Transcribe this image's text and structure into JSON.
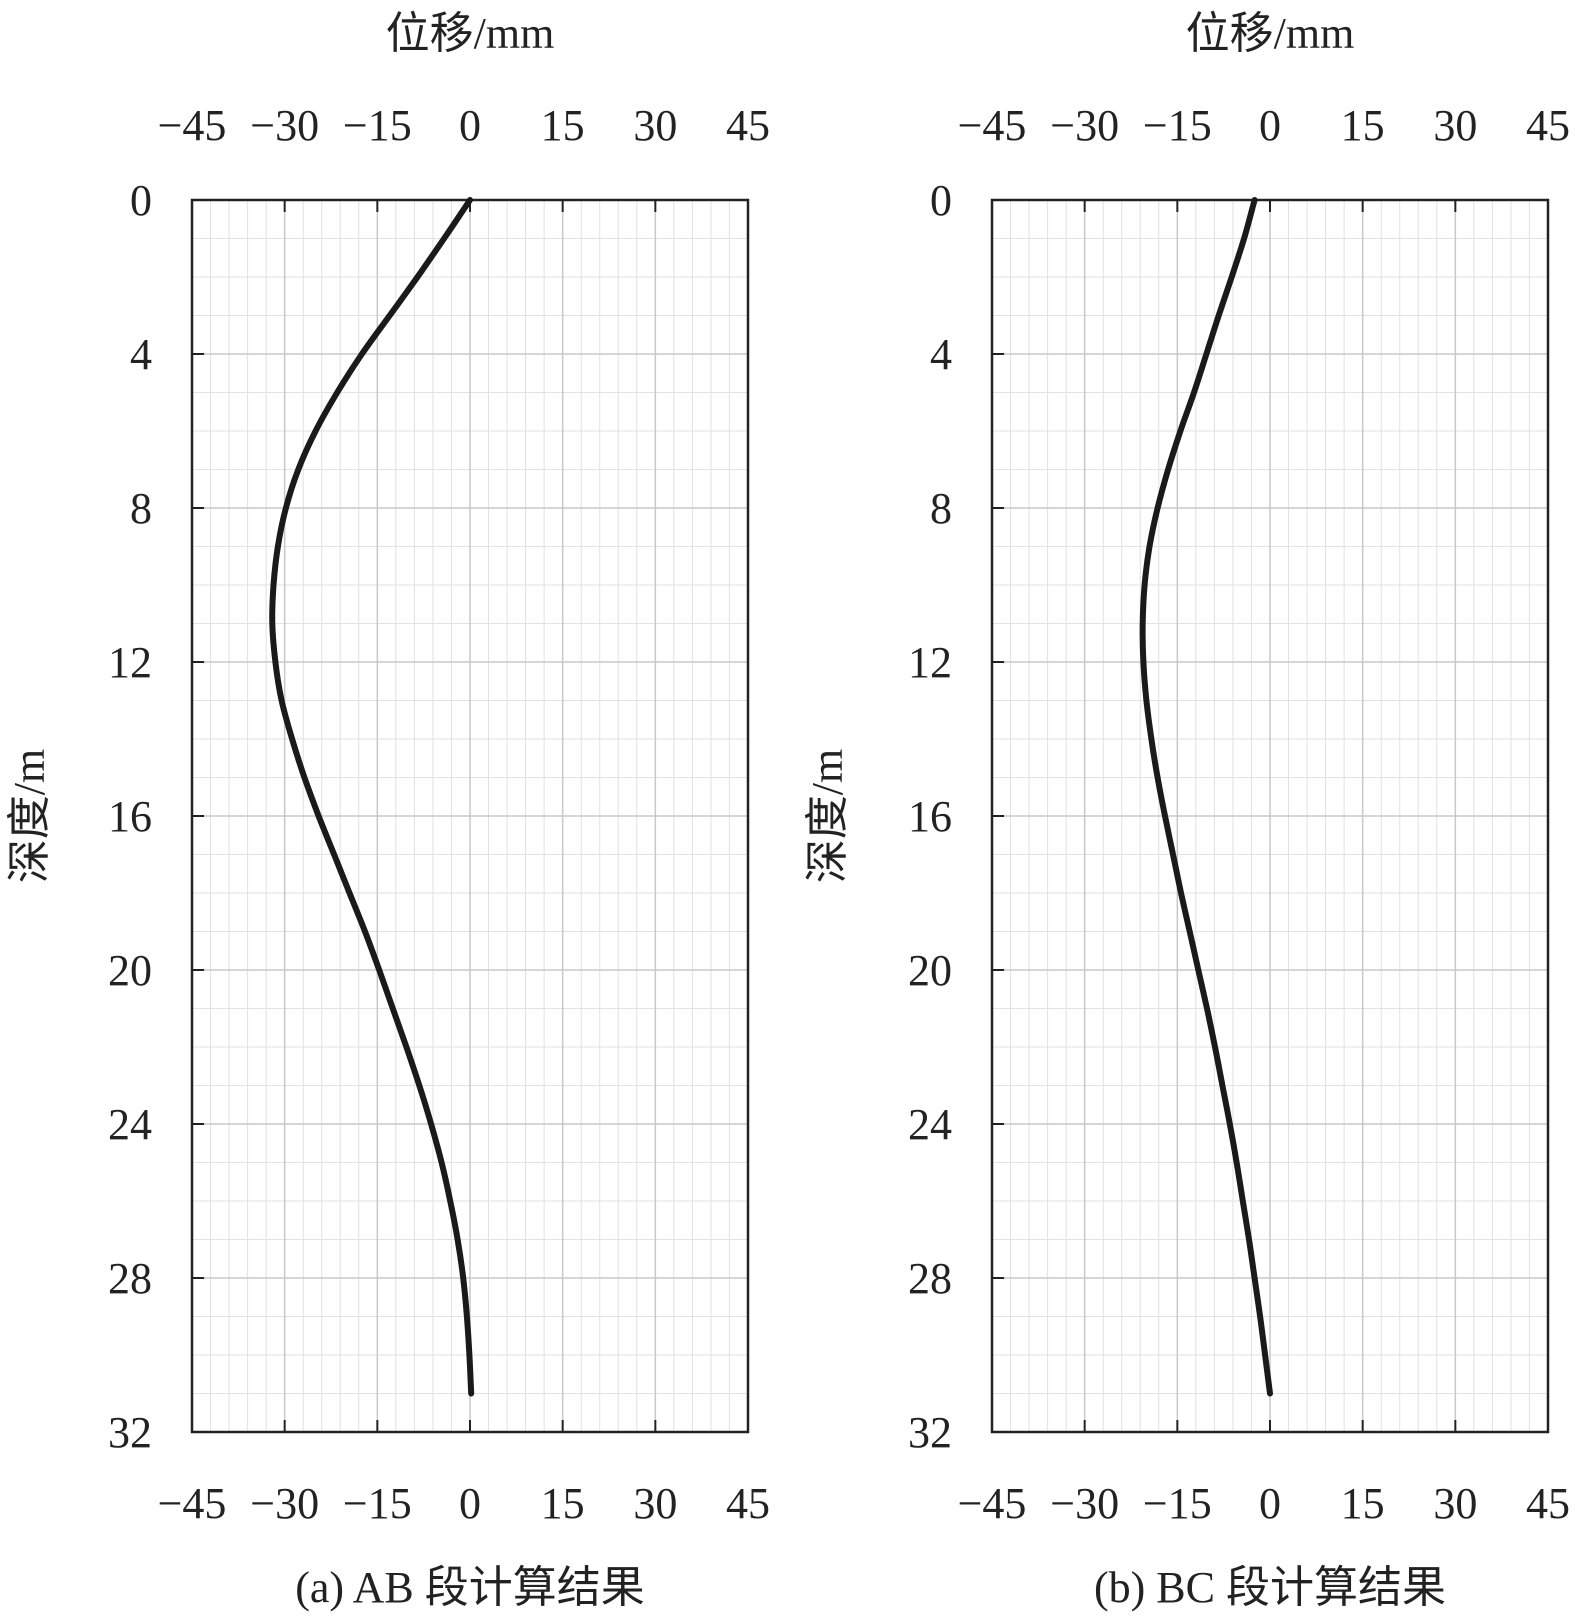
{
  "chart_data": [
    {
      "type": "line",
      "caption": "(a) AB 段计算结果",
      "xlabel": "位移/mm",
      "ylabel": "深度/m",
      "xlim": [
        -45,
        45
      ],
      "ylim": [
        0,
        32
      ],
      "y_inverted": true,
      "xticks": [
        "−45",
        "−30",
        "−15",
        "0",
        "15",
        "30",
        "45"
      ],
      "xtick_values": [
        -45,
        -30,
        -15,
        0,
        15,
        30,
        45
      ],
      "yticks": [
        "0",
        "4",
        "8",
        "12",
        "16",
        "20",
        "24",
        "28",
        "32"
      ],
      "ytick_values": [
        0,
        4,
        8,
        12,
        16,
        20,
        24,
        28,
        32
      ],
      "x_axis_top_and_bottom": true,
      "grid": true,
      "series": [
        {
          "depth": [
            0,
            1,
            2,
            3,
            4,
            5,
            6,
            7,
            8,
            9,
            10,
            11,
            12,
            13,
            14,
            15,
            16,
            17,
            18,
            19,
            20,
            21,
            22,
            23,
            24,
            25,
            26,
            27,
            28,
            29,
            30,
            31
          ],
          "displacement": [
            0,
            -4.2,
            -8.5,
            -13,
            -17.5,
            -21.5,
            -25,
            -27.8,
            -29.8,
            -31.1,
            -31.8,
            -32,
            -31.5,
            -30.5,
            -28.8,
            -26.8,
            -24.5,
            -22,
            -19.5,
            -17,
            -14.7,
            -12.5,
            -10.3,
            -8.2,
            -6.3,
            -4.6,
            -3.2,
            -2,
            -1.1,
            -0.5,
            -0.1,
            0.2
          ]
        }
      ]
    },
    {
      "type": "line",
      "caption": "(b) BC 段计算结果",
      "xlabel": "位移/mm",
      "ylabel": "深度/m",
      "xlim": [
        -45,
        45
      ],
      "ylim": [
        0,
        32
      ],
      "y_inverted": true,
      "xticks": [
        "−45",
        "−30",
        "−15",
        "0",
        "15",
        "30",
        "45"
      ],
      "xtick_values": [
        -45,
        -30,
        -15,
        0,
        15,
        30,
        45
      ],
      "yticks": [
        "0",
        "4",
        "8",
        "12",
        "16",
        "20",
        "24",
        "28",
        "32"
      ],
      "ytick_values": [
        0,
        4,
        8,
        12,
        16,
        20,
        24,
        28,
        32
      ],
      "x_axis_top_and_bottom": true,
      "grid": true,
      "series": [
        {
          "depth": [
            0,
            1,
            2,
            3,
            4,
            5,
            6,
            7,
            8,
            9,
            10,
            11,
            12,
            13,
            14,
            15,
            16,
            17,
            18,
            19,
            20,
            21,
            22,
            23,
            24,
            25,
            26,
            27,
            28,
            29,
            30,
            31
          ],
          "displacement": [
            -2.5,
            -4.2,
            -6.2,
            -8.3,
            -10.3,
            -12.3,
            -14.5,
            -16.5,
            -18.2,
            -19.5,
            -20.3,
            -20.6,
            -20.5,
            -20,
            -19.2,
            -18.2,
            -17,
            -15.7,
            -14.4,
            -13,
            -11.6,
            -10.2,
            -8.9,
            -7.7,
            -6.5,
            -5.4,
            -4.4,
            -3.4,
            -2.5,
            -1.6,
            -0.8,
            0
          ]
        }
      ]
    }
  ]
}
